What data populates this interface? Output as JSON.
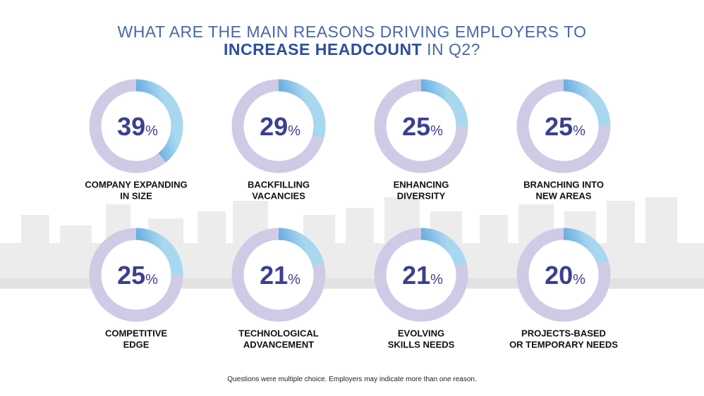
{
  "title": {
    "line1": "WHAT ARE THE MAIN REASONS DRIVING EMPLOYERS TO",
    "line2_bold": "INCREASE HEADCOUNT",
    "line2_rest": " IN Q2?"
  },
  "footnote": "Questions were multiple choice. Employers may indicate more than one reason.",
  "colors": {
    "ring_track": "#cfcbe6",
    "ring_start": "#4a4a9e",
    "ring_end": "#a8d8f0",
    "number": "#3c3f8f",
    "label": "#111111"
  },
  "chart_data": {
    "type": "donut",
    "title": "WHAT ARE THE MAIN REASONS DRIVING EMPLOYERS TO INCREASE HEADCOUNT IN Q2?",
    "unit": "%",
    "items": [
      {
        "value": 39,
        "label_lines": [
          "COMPANY EXPANDING",
          "IN SIZE"
        ]
      },
      {
        "value": 29,
        "label_lines": [
          "BACKFILLING",
          "VACANCIES"
        ]
      },
      {
        "value": 25,
        "label_lines": [
          "ENHANCING",
          "DIVERSITY"
        ]
      },
      {
        "value": 25,
        "label_lines": [
          "BRANCHING INTO",
          "NEW AREAS"
        ]
      },
      {
        "value": 25,
        "label_lines": [
          "COMPETITIVE",
          "EDGE"
        ]
      },
      {
        "value": 21,
        "label_lines": [
          "TECHNOLOGICAL",
          "ADVANCEMENT"
        ]
      },
      {
        "value": 21,
        "label_lines": [
          "EVOLVING",
          "SKILLS NEEDS"
        ]
      },
      {
        "value": 20,
        "label_lines": [
          "PROJECTS-BASED",
          "OR TEMPORARY NEEDS"
        ]
      }
    ]
  }
}
